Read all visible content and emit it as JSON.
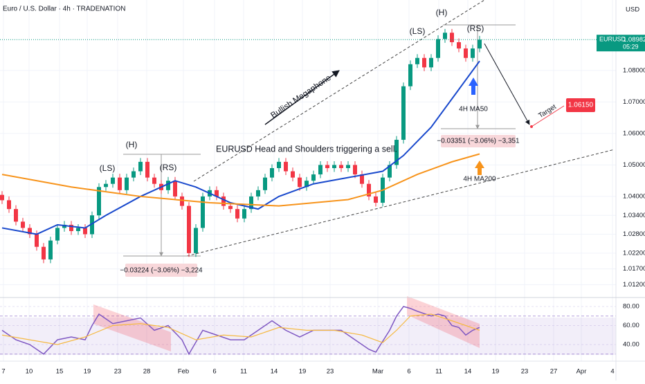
{
  "chart_data": [
    {
      "type": "candlestick",
      "title": "Euro / U.S. Dollar · 4h · TRADENATION",
      "currency": "USD",
      "symbol": "EURUSD",
      "last_price": 1.08982,
      "countdown": "05:29",
      "target": {
        "value": 1.0615,
        "label": "1.06150"
      },
      "up_color": "#089981",
      "down_color": "#f23645",
      "open": [
        1.0405,
        1.0388,
        1.036,
        1.032,
        1.03,
        1.028,
        1.024,
        1.02,
        1.026,
        1.03,
        1.031,
        1.029,
        1.03,
        1.028,
        1.034,
        1.043,
        1.044,
        1.046,
        1.042,
        1.046,
        1.048,
        1.051,
        1.046,
        1.044,
        1.042,
        1.045,
        1.04,
        1.037,
        1.022,
        1.03,
        1.04,
        1.042,
        1.04,
        1.037,
        1.036,
        1.033,
        1.036,
        1.04,
        1.042,
        1.046,
        1.049,
        1.051,
        1.048,
        1.046,
        1.043,
        1.045,
        1.047,
        1.05,
        1.049,
        1.05,
        1.049,
        1.05,
        1.047,
        1.044,
        1.04,
        1.038,
        1.046,
        1.05,
        1.058,
        1.075,
        1.082,
        1.084,
        1.081,
        1.084,
        1.09,
        1.092,
        1.089,
        1.087,
        1.084,
        1.087
      ],
      "high": [
        1.0417,
        1.04,
        1.0372,
        1.0332,
        1.0312,
        1.0292,
        1.0252,
        1.0272,
        1.0312,
        1.0322,
        1.0322,
        1.0312,
        1.0312,
        1.0352,
        1.0442,
        1.0452,
        1.0472,
        1.0472,
        1.0472,
        1.0492,
        1.0522,
        1.0522,
        1.0472,
        1.0452,
        1.0462,
        1.0462,
        1.0412,
        1.0382,
        1.0312,
        1.0412,
        1.0432,
        1.0432,
        1.0412,
        1.0382,
        1.0372,
        1.0372,
        1.0412,
        1.0432,
        1.0472,
        1.0502,
        1.0522,
        1.0522,
        1.0492,
        1.0472,
        1.0462,
        1.0482,
        1.0512,
        1.0512,
        1.0512,
        1.0512,
        1.0512,
        1.0512,
        1.0482,
        1.0452,
        1.0412,
        1.0472,
        1.0512,
        1.0592,
        1.0762,
        1.0832,
        1.0852,
        1.0852,
        1.0852,
        1.0912,
        1.0932,
        1.0932,
        1.0902,
        1.0882,
        1.0882,
        1.091
      ],
      "low": [
        1.0376,
        1.0348,
        1.0308,
        1.0288,
        1.0268,
        1.0228,
        1.0188,
        1.0188,
        1.0248,
        1.0288,
        1.0278,
        1.0278,
        1.0268,
        1.0268,
        1.0328,
        1.0418,
        1.0428,
        1.0408,
        1.0408,
        1.0448,
        1.0468,
        1.0448,
        1.0428,
        1.0408,
        1.0408,
        1.0388,
        1.0358,
        1.0208,
        1.0208,
        1.0288,
        1.0388,
        1.0388,
        1.0358,
        1.0348,
        1.0318,
        1.0318,
        1.0348,
        1.0388,
        1.0408,
        1.0448,
        1.0478,
        1.0468,
        1.0448,
        1.0418,
        1.0418,
        1.0438,
        1.0458,
        1.0478,
        1.0478,
        1.0478,
        1.0478,
        1.0458,
        1.0428,
        1.0388,
        1.0368,
        1.0368,
        1.0448,
        1.0488,
        1.0568,
        1.0738,
        1.0808,
        1.0798,
        1.0798,
        1.0828,
        1.0888,
        1.0878,
        1.0858,
        1.0828,
        1.0828,
        1.0858
      ],
      "close": [
        1.0388,
        1.036,
        1.032,
        1.03,
        1.028,
        1.024,
        1.02,
        1.026,
        1.03,
        1.031,
        1.029,
        1.03,
        1.028,
        1.034,
        1.043,
        1.044,
        1.046,
        1.042,
        1.046,
        1.048,
        1.051,
        1.046,
        1.044,
        1.042,
        1.045,
        1.04,
        1.037,
        1.022,
        1.03,
        1.04,
        1.042,
        1.04,
        1.037,
        1.036,
        1.033,
        1.036,
        1.04,
        1.042,
        1.046,
        1.049,
        1.051,
        1.048,
        1.046,
        1.043,
        1.045,
        1.047,
        1.05,
        1.049,
        1.05,
        1.049,
        1.05,
        1.047,
        1.044,
        1.04,
        1.038,
        1.046,
        1.05,
        1.058,
        1.075,
        1.082,
        1.084,
        1.081,
        1.084,
        1.09,
        1.092,
        1.089,
        1.087,
        1.084,
        1.087,
        1.0898
      ],
      "overlays": [
        {
          "name": "4H MA50",
          "color": "#1848cc",
          "x": [
            0,
            5,
            8,
            12,
            15,
            20,
            25,
            28,
            33,
            37,
            40,
            45,
            50,
            55,
            58,
            62,
            66,
            69
          ],
          "values": [
            1.03,
            1.028,
            1.031,
            1.03,
            1.034,
            1.04,
            1.045,
            1.043,
            1.038,
            1.036,
            1.04,
            1.044,
            1.046,
            1.048,
            1.053,
            1.062,
            1.074,
            1.083
          ]
        },
        {
          "name": "4H MA200",
          "color": "#f7931a",
          "x": [
            0,
            10,
            20,
            30,
            40,
            50,
            55,
            60,
            65,
            69
          ],
          "values": [
            1.047,
            1.043,
            1.04,
            1.038,
            1.037,
            1.039,
            1.042,
            1.047,
            1.051,
            1.0535
          ]
        }
      ],
      "annotations": [
        "(LS)",
        "(H)",
        "(RS)",
        "(LS)",
        "(H)",
        "(RS)",
        "Bullish Megaphone",
        "EURUSD Head and Shoulders triggering a sell.",
        "Target",
        "−0.03224 (−3.06%) −3,224",
        "−0.03351 (−3.06%) −3,351"
      ],
      "xlim": [
        -0.3,
        88.7
      ],
      "xticks": [
        {
          "value": 0.2,
          "label": "7"
        },
        {
          "value": 3.9,
          "label": "10"
        },
        {
          "value": 8.3,
          "label": "15"
        },
        {
          "value": 12.3,
          "label": "19"
        },
        {
          "value": 16.7,
          "label": "23"
        },
        {
          "value": 20.9,
          "label": "28"
        },
        {
          "value": 26.2,
          "label": "Feb"
        },
        {
          "value": 30.7,
          "label": "6"
        },
        {
          "value": 34.9,
          "label": "11"
        },
        {
          "value": 39.3,
          "label": "14"
        },
        {
          "value": 43.4,
          "label": "19"
        },
        {
          "value": 47.4,
          "label": "23"
        },
        {
          "value": 54.3,
          "label": "Mar"
        },
        {
          "value": 58.8,
          "label": "6"
        },
        {
          "value": 63.1,
          "label": "11"
        },
        {
          "value": 67.3,
          "label": "14"
        },
        {
          "value": 71.3,
          "label": "19"
        },
        {
          "value": 75.5,
          "label": "23"
        },
        {
          "value": 79.7,
          "label": "27"
        },
        {
          "value": 83.7,
          "label": "Apr"
        },
        {
          "value": 88.2,
          "label": "4"
        }
      ],
      "ylim": [
        1.0079,
        1.1024
      ],
      "yticks": [
        {
          "value": 1.08,
          "label": "1.08000"
        },
        {
          "value": 1.07,
          "label": "1.07000"
        },
        {
          "value": 1.06,
          "label": "1.06000"
        },
        {
          "value": 1.05,
          "label": "1.05000"
        },
        {
          "value": 1.04,
          "label": "1.04000"
        },
        {
          "value": 1.034,
          "label": "1.03400"
        },
        {
          "value": 1.028,
          "label": "1.02800"
        },
        {
          "value": 1.022,
          "label": "1.02200"
        },
        {
          "value": 1.017,
          "label": "1.01700"
        },
        {
          "value": 1.012,
          "label": "1.01200"
        }
      ]
    },
    {
      "type": "line",
      "band": [
        30,
        70
      ],
      "series": [
        {
          "color": "#7e57c2",
          "x": [
            0,
            2,
            4,
            6,
            8,
            10,
            12,
            13,
            14,
            16,
            18,
            20,
            22,
            24,
            26,
            27,
            29,
            31,
            33,
            35,
            37,
            39,
            41,
            43,
            45,
            47,
            49,
            51,
            53,
            54,
            56,
            57,
            58,
            59,
            60,
            62,
            63,
            64,
            65,
            66,
            67,
            68,
            69
          ],
          "values": [
            55,
            45,
            40,
            30,
            45,
            48,
            45,
            60,
            72,
            62,
            65,
            68,
            55,
            60,
            45,
            30,
            55,
            50,
            45,
            45,
            55,
            65,
            55,
            48,
            55,
            55,
            55,
            45,
            35,
            32,
            55,
            70,
            80,
            78,
            75,
            70,
            72,
            70,
            60,
            58,
            50,
            55,
            58
          ]
        },
        {
          "color": "#f5b942",
          "x": [
            0,
            4,
            8,
            12,
            16,
            20,
            24,
            28,
            32,
            36,
            40,
            44,
            48,
            52,
            55,
            57,
            59,
            62,
            65,
            69
          ],
          "values": [
            50,
            45,
            40,
            48,
            60,
            62,
            58,
            45,
            50,
            48,
            58,
            55,
            55,
            50,
            42,
            55,
            70,
            72,
            65,
            55
          ]
        }
      ],
      "ylim": [
        24,
        88
      ],
      "yticks": [
        {
          "value": 80,
          "label": "80.00"
        },
        {
          "value": 60,
          "label": "60.00"
        },
        {
          "value": 40,
          "label": "40.00"
        }
      ]
    }
  ]
}
